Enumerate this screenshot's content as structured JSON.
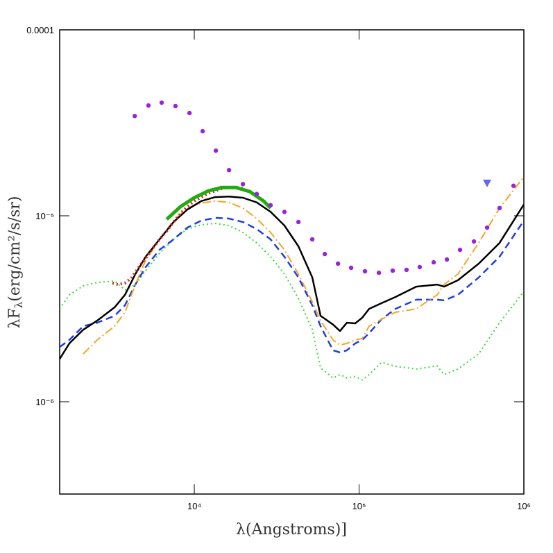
{
  "chart_data": {
    "type": "line",
    "x_label": "λ(Angstroms)]",
    "y_label": [
      "λF",
      "λ",
      "(erg/cm²/s/sr)"
    ],
    "xscale": "log",
    "yscale": "log",
    "xlim": [
      1524,
      1000000
    ],
    "ylim": [
      3.19e-07,
      0.0001
    ],
    "xticks": [
      {
        "value": 10000,
        "label": "10⁴"
      },
      {
        "value": 100000,
        "label": "10⁵"
      },
      {
        "value": 1000000,
        "label": "10⁶"
      }
    ],
    "yticks": [
      {
        "value": 1e-06,
        "label": "10⁻⁶"
      },
      {
        "value": 1e-05,
        "label": "10⁻⁵"
      },
      0.0001
    ],
    "series": [
      {
        "type": "line",
        "color": "#33dd33",
        "linestyle": "dotted",
        "linewidth": 2,
        "x": [
          1524,
          1746,
          2120,
          2575,
          3283,
          3795,
          4389,
          5073,
          6150,
          7480,
          9080,
          11020,
          13370,
          16250,
          19720,
          23930,
          29040,
          35240,
          42850,
          52000,
          58350,
          69500,
          76560,
          84300,
          94800,
          104500,
          115100,
          137000,
          166400,
          222400,
          297700,
          328000,
          398000,
          532000,
          712000,
          1000000
        ],
        "values": [
          3.16e-06,
          3.76e-06,
          4.2e-06,
          4.38e-06,
          4.46e-06,
          3.99e-06,
          4.27e-06,
          5.07e-06,
          6.29e-06,
          7.47e-06,
          8.49e-06,
          8.94e-06,
          9.1e-06,
          8.87e-06,
          8.13e-06,
          7.15e-06,
          6.03e-06,
          4.86e-06,
          3.6e-06,
          2.44e-06,
          1.52e-06,
          1.34e-06,
          1.4e-06,
          1.34e-06,
          1.37e-06,
          1.31e-06,
          1.4e-06,
          1.63e-06,
          1.55e-06,
          1.5e-06,
          1.56e-06,
          1.4e-06,
          1.5e-06,
          1.81e-06,
          2.66e-06,
          3.92e-06
        ]
      },
      {
        "type": "line",
        "color": "#1f3fe0",
        "linestyle": "dashed",
        "linewidth": 2.5,
        "x": [
          1524,
          1746,
          2120,
          2575,
          3283,
          3795,
          4389,
          5073,
          6150,
          7480,
          9080,
          11020,
          13370,
          16250,
          19720,
          23930,
          29040,
          35240,
          42850,
          52000,
          58350,
          69500,
          76560,
          84300,
          94800,
          104500,
          115100,
          137000,
          166400,
          222400,
          297700,
          328000,
          398000,
          532000,
          712000,
          1000000
        ],
        "values": [
          1.97e-06,
          2.15e-06,
          2.55e-06,
          2.66e-06,
          2.9e-06,
          3.3e-06,
          4.27e-06,
          5.3e-06,
          6.56e-06,
          7.47e-06,
          8.64e-06,
          9.42e-06,
          9.75e-06,
          9.66e-06,
          9.26e-06,
          8.49e-06,
          7.47e-06,
          6.03e-06,
          4.66e-06,
          3.3e-06,
          2.55e-06,
          1.89e-06,
          1.84e-06,
          1.89e-06,
          2.06e-06,
          2.15e-06,
          2.34e-06,
          2.78e-06,
          3.16e-06,
          3.54e-06,
          3.54e-06,
          3.51e-06,
          3.76e-06,
          4.66e-06,
          6.03e-06,
          9.42e-06
        ]
      },
      {
        "type": "line",
        "color": "#f5a623",
        "linestyle": "dashdot",
        "linewidth": 2,
        "x": [
          2120,
          2575,
          3283,
          3795,
          4389,
          5073,
          6150,
          7480,
          9080,
          11020,
          13370,
          16250,
          19720,
          23930,
          29040,
          35240,
          42850,
          52000,
          58350,
          69500,
          76560,
          84300,
          94800,
          104500,
          115100,
          137000,
          166400,
          222400,
          297700,
          328000,
          398000,
          532000,
          712000,
          1000000
        ],
        "values": [
          1.81e-06,
          2.15e-06,
          2.55e-06,
          3.03e-06,
          4.27e-06,
          5.77e-06,
          7.47e-06,
          9.42e-06,
          1.1e-05,
          1.17e-05,
          1.2e-05,
          1.18e-05,
          1.1e-05,
          9.66e-06,
          8.13e-06,
          6.56e-06,
          4.86e-06,
          3.45e-06,
          2.73e-06,
          2.15e-06,
          2.02e-06,
          2.06e-06,
          2.15e-06,
          2.19e-06,
          2.55e-06,
          2.78e-06,
          3.03e-06,
          3.16e-06,
          3.76e-06,
          4.27e-06,
          4.86e-06,
          7.15e-06,
          1.1e-05,
          1.62e-05
        ]
      },
      {
        "type": "line",
        "color": "#000000",
        "linestyle": "solid",
        "linewidth": 2.5,
        "x": [
          1524,
          1746,
          2120,
          2575,
          3283,
          3795,
          4389,
          5073,
          6150,
          7480,
          9080,
          11020,
          13370,
          16250,
          19720,
          23930,
          29040,
          35240,
          42850,
          52000,
          58350,
          69500,
          76560,
          84300,
          94800,
          104500,
          115100,
          137000,
          166400,
          222400,
          297700,
          328000,
          398000,
          532000,
          712000,
          1000000
        ],
        "values": [
          1.7e-06,
          2.06e-06,
          2.44e-06,
          2.73e-06,
          3.22e-06,
          3.76e-06,
          4.86e-06,
          6.03e-06,
          7.47e-06,
          9.26e-06,
          1.08e-05,
          1.2e-05,
          1.26e-05,
          1.27e-05,
          1.25e-05,
          1.18e-05,
          1.05e-05,
          8.87e-06,
          6.85e-06,
          4.66e-06,
          2.9e-06,
          2.6e-06,
          2.4e-06,
          2.66e-06,
          2.64e-06,
          2.83e-06,
          3.16e-06,
          3.39e-06,
          3.66e-06,
          4.16e-06,
          4.27e-06,
          4.16e-06,
          4.5e-06,
          5.53e-06,
          7.15e-06,
          1.15e-05
        ]
      },
      {
        "type": "line",
        "color": "#cc2222",
        "linestyle": "dotted",
        "linewidth": 4,
        "x": [
          3186,
          3444,
          3795,
          4180,
          4606,
          5073,
          5590,
          6150,
          6800,
          7480,
          8240,
          9080,
          10000,
          11020,
          12140,
          13370,
          14730,
          16250,
          17890,
          19720
        ],
        "values": [
          4.35e-06,
          4.27e-06,
          4.35e-06,
          4.66e-06,
          5.3e-06,
          5.92e-06,
          6.68e-06,
          7.47e-06,
          8.28e-06,
          9.26e-06,
          1.03e-05,
          1.12e-05,
          1.2e-05,
          1.26e-05,
          1.32e-05,
          1.36e-05,
          1.4e-05,
          1.42e-05,
          1.42e-05,
          1.4e-05
        ]
      },
      {
        "type": "line",
        "color": "#22aa11",
        "linestyle": "solid",
        "linewidth": 5,
        "x": [
          6800,
          8240,
          10000,
          12140,
          14730,
          17890,
          21720,
          26370,
          29040
        ],
        "values": [
          9.57e-06,
          1.12e-05,
          1.25e-05,
          1.36e-05,
          1.42e-05,
          1.42e-05,
          1.35e-05,
          1.2e-05,
          1.1e-05
        ]
      },
      {
        "type": "scatter",
        "color": "#9922dd",
        "marker": "circle",
        "x": [
          4350,
          5270,
          6340,
          7690,
          9350,
          11240,
          13510,
          16250,
          19720,
          23930,
          29040,
          35240,
          42850,
          52000,
          61940,
          74500,
          89500,
          108600,
          131900,
          160000,
          194100,
          233400,
          283600,
          341200,
          410000,
          497900,
          598400,
          712000,
          865000
        ],
        "values": [
          3.44e-05,
          3.92e-05,
          4.06e-05,
          3.89e-05,
          3.57e-05,
          2.85e-05,
          2.24e-05,
          1.76e-05,
          1.48e-05,
          1.31e-05,
          1.14e-05,
          1.05e-05,
          9.26e-06,
          7.47e-06,
          6.23e-06,
          5.53e-06,
          5.25e-06,
          5.03e-06,
          4.94e-06,
          5.07e-06,
          5.12e-06,
          5.3e-06,
          5.62e-06,
          5.82e-06,
          6.56e-06,
          7.28e-06,
          8.64e-06,
          1.1e-05,
          1.45e-05
        ]
      },
      {
        "type": "scatter",
        "color": "#6666ee",
        "marker": "triangle",
        "x": [
          598400
        ],
        "values": [
          1.5e-05
        ]
      }
    ]
  }
}
